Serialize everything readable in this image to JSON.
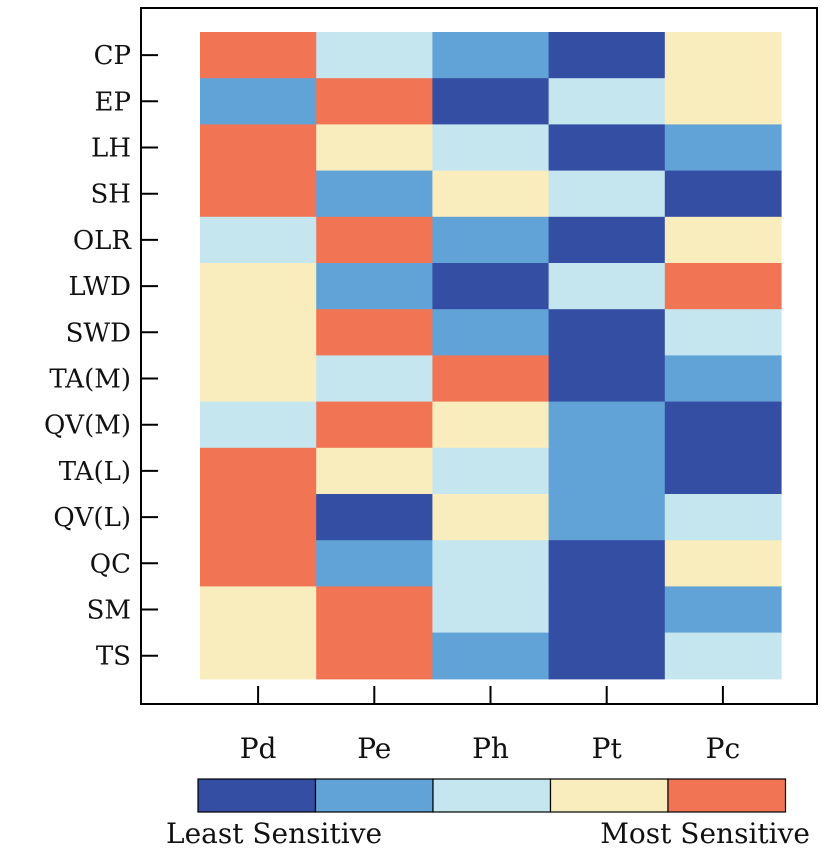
{
  "chart_data": {
    "type": "heatmap",
    "title": "",
    "xlabel": "",
    "ylabel": "",
    "columns": [
      "Pd",
      "Pe",
      "Ph",
      "Pt",
      "Pc"
    ],
    "rows": [
      "CP",
      "EP",
      "LH",
      "SH",
      "OLR",
      "LWD",
      "SWD",
      "TA(M)",
      "QV(M)",
      "TA(L)",
      "QV(L)",
      "QC",
      "SM",
      "TS"
    ],
    "levels": [
      1,
      2,
      3,
      4,
      5
    ],
    "level_colors": [
      "#334ea2",
      "#62a3d7",
      "#c5e6ef",
      "#f9ecbd",
      "#f17555"
    ],
    "values": [
      [
        5,
        3,
        2,
        1,
        4
      ],
      [
        2,
        5,
        1,
        3,
        4
      ],
      [
        5,
        4,
        3,
        1,
        2
      ],
      [
        5,
        2,
        4,
        3,
        1
      ],
      [
        3,
        5,
        2,
        1,
        4
      ],
      [
        4,
        2,
        1,
        3,
        5
      ],
      [
        4,
        5,
        2,
        1,
        3
      ],
      [
        4,
        3,
        5,
        1,
        2
      ],
      [
        3,
        5,
        4,
        2,
        1
      ],
      [
        5,
        4,
        3,
        2,
        1
      ],
      [
        5,
        1,
        4,
        2,
        3
      ],
      [
        5,
        2,
        3,
        1,
        4
      ],
      [
        4,
        5,
        3,
        1,
        2
      ],
      [
        4,
        5,
        2,
        1,
        3
      ]
    ],
    "legend": {
      "low_label": "Least Sensitive",
      "high_label": "Most Sensitive"
    },
    "grid": false
  }
}
